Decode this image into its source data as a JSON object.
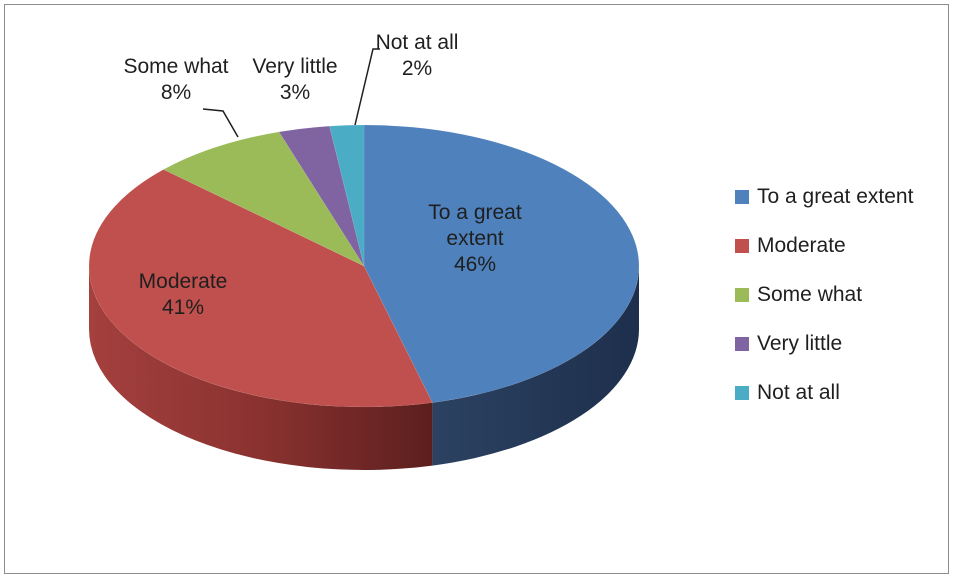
{
  "chart_data": {
    "type": "pie",
    "title": "",
    "legend_position": "right",
    "slices": [
      {
        "name": "To a great extent",
        "label_lines": [
          "To a great",
          "extent"
        ],
        "value": 46,
        "display": "46%",
        "color": "#4f81bd",
        "label_color": "#1f1f1f"
      },
      {
        "name": "Moderate",
        "label_lines": [
          "Moderate"
        ],
        "value": 41,
        "display": "41%",
        "color": "#c0504d",
        "label_color": "#1f1f1f"
      },
      {
        "name": "Some what",
        "label_lines": [
          "Some what"
        ],
        "value": 8,
        "display": "8%",
        "color": "#9bbb59",
        "label_color": "#1f1f1f"
      },
      {
        "name": "Very little",
        "label_lines": [
          "Very little"
        ],
        "value": 3,
        "display": "3%",
        "color": "#8064a2",
        "label_color": "#1f1f1f"
      },
      {
        "name": "Not at all",
        "label_lines": [
          "Not at all"
        ],
        "value": 2,
        "display": "2%",
        "color": "#4bacc6",
        "label_color": "#1f1f1f"
      }
    ]
  }
}
